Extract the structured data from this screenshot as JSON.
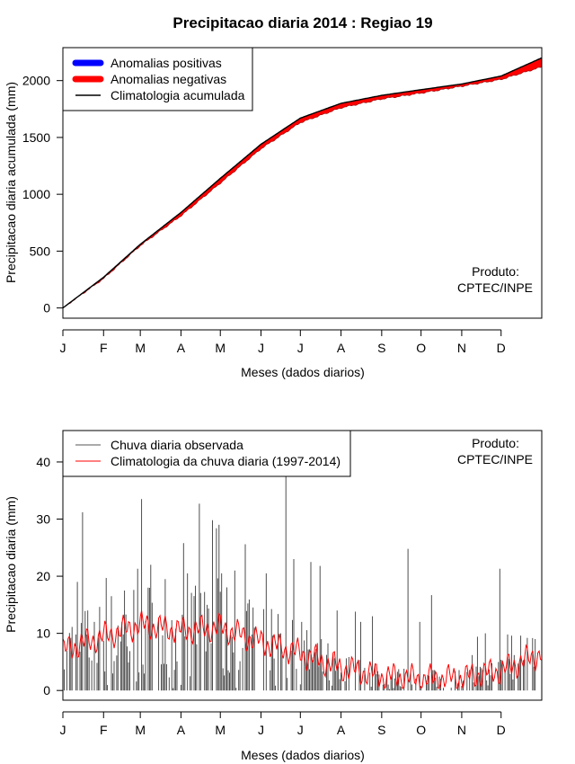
{
  "chart_data": [
    {
      "type": "area",
      "title": "Precipitacao diaria 2014 : Regiao 19",
      "xlabel": "Meses (dados diarios)",
      "ylabel": "Precipitacao diaria acumulada (mm)",
      "x_ticks": [
        "J",
        "F",
        "M",
        "A",
        "M",
        "J",
        "J",
        "A",
        "S",
        "O",
        "N",
        "D"
      ],
      "y_ticks": [
        0,
        500,
        1000,
        1500,
        2000
      ],
      "xlim": [
        1,
        366
      ],
      "ylim": [
        -90,
        2290
      ],
      "legend": {
        "position": "top-left",
        "items": [
          {
            "label": "Anomalias positivas",
            "color": "#0000ff"
          },
          {
            "label": "Anomalias negativas",
            "color": "#ff0000"
          },
          {
            "label": "Climatologia acumulada",
            "color": "#000000"
          }
        ]
      },
      "note_line1": "Produto:",
      "note_line2": "CPTEC/INPE",
      "day_knots": [
        1,
        32,
        60,
        91,
        121,
        152,
        182,
        213,
        244,
        274,
        305,
        335,
        366
      ],
      "climatology_cumulative": [
        0,
        270,
        560,
        840,
        1140,
        1440,
        1670,
        1800,
        1870,
        1920,
        1970,
        2040,
        2200
      ],
      "observed_cumulative": [
        0,
        258,
        548,
        810,
        1098,
        1400,
        1630,
        1760,
        1838,
        1890,
        1950,
        2010,
        2120
      ]
    },
    {
      "type": "bar",
      "xlabel": "Meses (dados diarios)",
      "ylabel": "Precipitacao diaria (mm)",
      "x_ticks": [
        "J",
        "F",
        "M",
        "A",
        "M",
        "J",
        "J",
        "A",
        "S",
        "O",
        "N",
        "D"
      ],
      "y_ticks": [
        0,
        10,
        20,
        30,
        40
      ],
      "xlim": [
        1,
        366
      ],
      "ylim": [
        -1.7,
        45.5
      ],
      "legend": {
        "position": "top-left",
        "items": [
          {
            "label": "Chuva diaria observada",
            "color": "#555555"
          },
          {
            "label": "Climatologia da chuva diaria (1997-2014)",
            "color": "#ff0000"
          }
        ]
      },
      "note_line1": "Produto:",
      "note_line2": "CPTEC/INPE",
      "series": [
        {
          "name": "Climatologia da chuva diaria (1997-2014)",
          "day_knots": [
            1,
            32,
            60,
            91,
            121,
            152,
            182,
            213,
            244,
            274,
            305,
            335,
            366
          ],
          "values": [
            7,
            9.5,
            11.5,
            10.5,
            11,
            8.5,
            6.5,
            4,
            2.5,
            2,
            2.2,
            3.5,
            6.5
          ]
        },
        {
          "name": "Chuva diaria observada",
          "highlight_days": [
            [
              12,
              19
            ],
            [
              16,
              31.2
            ],
            [
              25,
              12
            ],
            [
              34,
              19.7
            ],
            [
              48,
              17.5
            ],
            [
              58,
              21.3
            ],
            [
              61,
              33.5
            ],
            [
              68,
              22
            ],
            [
              74,
              12.5
            ],
            [
              79,
              19.5
            ],
            [
              93,
              25.8
            ],
            [
              96,
              20.5
            ],
            [
              105,
              32.7
            ],
            [
              111,
              15
            ],
            [
              115,
              29.8
            ],
            [
              118,
              28.4
            ],
            [
              120,
              29
            ],
            [
              122,
              20.5
            ],
            [
              132,
              21
            ],
            [
              140,
              25.6
            ],
            [
              147,
              11
            ],
            [
              156,
              20.5
            ],
            [
              167,
              10
            ],
            [
              171,
              37.8
            ],
            [
              177,
              23
            ],
            [
              183,
              12
            ],
            [
              190,
              22.5
            ],
            [
              197,
              21.8
            ],
            [
              210,
              14
            ],
            [
              224,
              13.8
            ],
            [
              228,
              12
            ],
            [
              237,
              13
            ],
            [
              264,
              24.8
            ],
            [
              273,
              12
            ],
            [
              282,
              16.7
            ],
            [
              313,
              6.2
            ],
            [
              317,
              9.4
            ],
            [
              323,
              10
            ],
            [
              334,
              21.3
            ],
            [
              340,
              9.8
            ],
            [
              343,
              9.6
            ],
            [
              350,
              9.6
            ],
            [
              355,
              9.2
            ],
            [
              361,
              9
            ]
          ]
        }
      ]
    }
  ]
}
